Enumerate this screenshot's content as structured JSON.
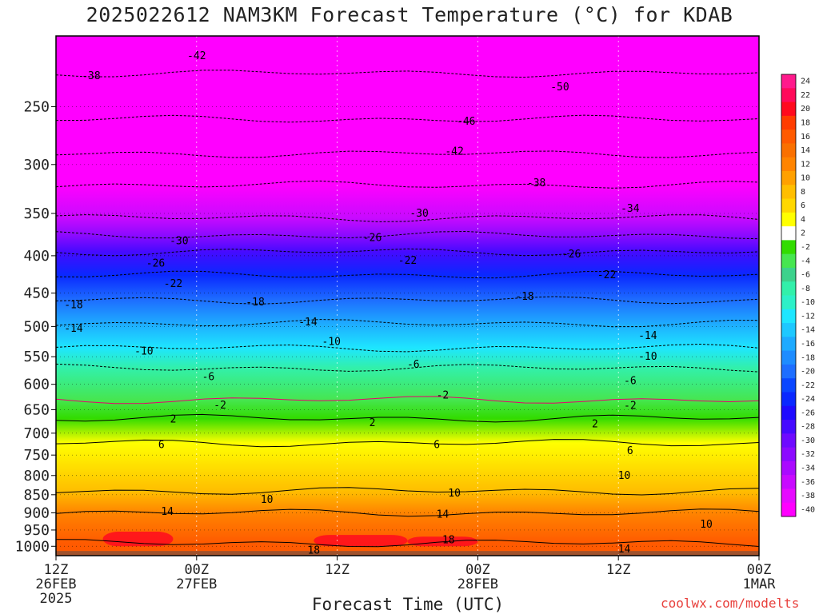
{
  "chart_data": {
    "type": "heatmap",
    "title": "2025022612 NAM3KM Forecast Temperature (°C) for KDAB",
    "xlabel": "Forecast Time (UTC)",
    "ylabel": "",
    "credit": "coolwx.com/modelts",
    "y_axis": {
      "scale": "pressure",
      "ticks": [
        250,
        300,
        350,
        400,
        450,
        500,
        550,
        600,
        650,
        700,
        750,
        800,
        850,
        900,
        950,
        1000
      ],
      "range": [
        1030,
        200
      ]
    },
    "x_axis": {
      "ticks": [
        {
          "hour": 0,
          "lines": [
            "12Z",
            "26FEB",
            "2025"
          ]
        },
        {
          "hour": 12,
          "lines": [
            "00Z",
            "27FEB"
          ]
        },
        {
          "hour": 24,
          "lines": [
            "12Z"
          ]
        },
        {
          "hour": 36,
          "lines": [
            "00Z",
            "28FEB"
          ]
        },
        {
          "hour": 48,
          "lines": [
            "12Z"
          ]
        },
        {
          "hour": 60,
          "lines": [
            "00Z",
            "1MAR"
          ]
        }
      ],
      "range": [
        0,
        60
      ]
    },
    "colorbar": {
      "labels": [
        "24",
        "22",
        "20",
        "18",
        "16",
        "14",
        "12",
        "10",
        "8",
        "6",
        "4",
        "2",
        "-2",
        "-4",
        "-6",
        "-8",
        "-10",
        "-12",
        "-14",
        "-16",
        "-18",
        "-20",
        "-22",
        "-24",
        "-26",
        "-28",
        "-30",
        "-32",
        "-34",
        "-36",
        "-38",
        "-40"
      ],
      "colors": [
        "#ff1a8c",
        "#ff0a5a",
        "#ff0a1e",
        "#ff3c00",
        "#ff5a00",
        "#fa7000",
        "#ff8400",
        "#ffa000",
        "#ffbe00",
        "#ffd700",
        "#ffff00",
        "#ffffff",
        "#32dc00",
        "#46e650",
        "#3cd28c",
        "#32f0aa",
        "#2df0c8",
        "#1ee6ff",
        "#1ec8ff",
        "#1eaaff",
        "#1e8cff",
        "#1e6eff",
        "#0a46ff",
        "#0a28ff",
        "#1e0aff",
        "#460aff",
        "#6e0aff",
        "#8c0aff",
        "#aa0aff",
        "#c80aff",
        "#e60aff",
        "#ff00ff"
      ]
    },
    "temperature_profile": [
      {
        "p": 225,
        "t": -42
      },
      {
        "p": 260,
        "t": -46
      },
      {
        "p": 290,
        "t": -42
      },
      {
        "p": 320,
        "t": -38
      },
      {
        "p": 355,
        "t": -34
      },
      {
        "p": 375,
        "t": -30
      },
      {
        "p": 395,
        "t": -26
      },
      {
        "p": 425,
        "t": -22
      },
      {
        "p": 460,
        "t": -18
      },
      {
        "p": 495,
        "t": -14
      },
      {
        "p": 535,
        "t": -10
      },
      {
        "p": 570,
        "t": -6
      },
      {
        "p": 630,
        "t": -2
      },
      {
        "p": 668,
        "t": 2
      },
      {
        "p": 722,
        "t": 6
      },
      {
        "p": 840,
        "t": 10
      },
      {
        "p": 900,
        "t": 14
      },
      {
        "p": 990,
        "t": 18
      }
    ],
    "contour_labels": [
      {
        "text": "-42",
        "hour": 12,
        "p": 213
      },
      {
        "text": "-38",
        "hour": 3,
        "p": 227
      },
      {
        "text": "-50",
        "hour": 43,
        "p": 235
      },
      {
        "text": "-46",
        "hour": 35,
        "p": 262
      },
      {
        "text": "-42",
        "hour": 34,
        "p": 288
      },
      {
        "text": "-38",
        "hour": 41,
        "p": 318
      },
      {
        "text": "-34",
        "hour": 49,
        "p": 345
      },
      {
        "text": "-30",
        "hour": 31,
        "p": 350
      },
      {
        "text": "-30",
        "hour": 10.5,
        "p": 382
      },
      {
        "text": "-26",
        "hour": 27,
        "p": 378
      },
      {
        "text": "-26",
        "hour": 44,
        "p": 398
      },
      {
        "text": "-26",
        "hour": 8.5,
        "p": 410
      },
      {
        "text": "-22",
        "hour": 30,
        "p": 406
      },
      {
        "text": "-22",
        "hour": 47,
        "p": 425
      },
      {
        "text": "-22",
        "hour": 10,
        "p": 437
      },
      {
        "text": "-18",
        "hour": 1.5,
        "p": 467
      },
      {
        "text": "-18",
        "hour": 17,
        "p": 463
      },
      {
        "text": "-18",
        "hour": 40,
        "p": 455
      },
      {
        "text": "-14",
        "hour": 1.5,
        "p": 503
      },
      {
        "text": "-14",
        "hour": 21.5,
        "p": 493
      },
      {
        "text": "-14",
        "hour": 50.5,
        "p": 515
      },
      {
        "text": "-10",
        "hour": 7.5,
        "p": 541
      },
      {
        "text": "-10",
        "hour": 23.5,
        "p": 525
      },
      {
        "text": "-10",
        "hour": 50.5,
        "p": 550
      },
      {
        "text": "-6",
        "hour": 13,
        "p": 586
      },
      {
        "text": "-6",
        "hour": 30.5,
        "p": 564
      },
      {
        "text": "-6",
        "hour": 49,
        "p": 594
      },
      {
        "text": "-2",
        "hour": 14,
        "p": 641
      },
      {
        "text": "-2",
        "hour": 33,
        "p": 621
      },
      {
        "text": "-2",
        "hour": 49,
        "p": 642
      },
      {
        "text": "2",
        "hour": 10,
        "p": 670
      },
      {
        "text": "2",
        "hour": 27,
        "p": 678
      },
      {
        "text": "2",
        "hour": 46,
        "p": 680
      },
      {
        "text": "6",
        "hour": 9,
        "p": 726
      },
      {
        "text": "6",
        "hour": 32.5,
        "p": 726
      },
      {
        "text": "6",
        "hour": 49,
        "p": 740
      },
      {
        "text": "10",
        "hour": 18,
        "p": 863
      },
      {
        "text": "10",
        "hour": 34,
        "p": 846
      },
      {
        "text": "10",
        "hour": 48.5,
        "p": 800
      },
      {
        "text": "10",
        "hour": 55.5,
        "p": 934
      },
      {
        "text": "14",
        "hour": 9.5,
        "p": 897
      },
      {
        "text": "14",
        "hour": 33,
        "p": 905
      },
      {
        "text": "14",
        "hour": 48.5,
        "p": 1010
      },
      {
        "text": "18",
        "hour": 33.5,
        "p": 980
      },
      {
        "text": "18",
        "hour": 22,
        "p": 1013
      }
    ]
  }
}
